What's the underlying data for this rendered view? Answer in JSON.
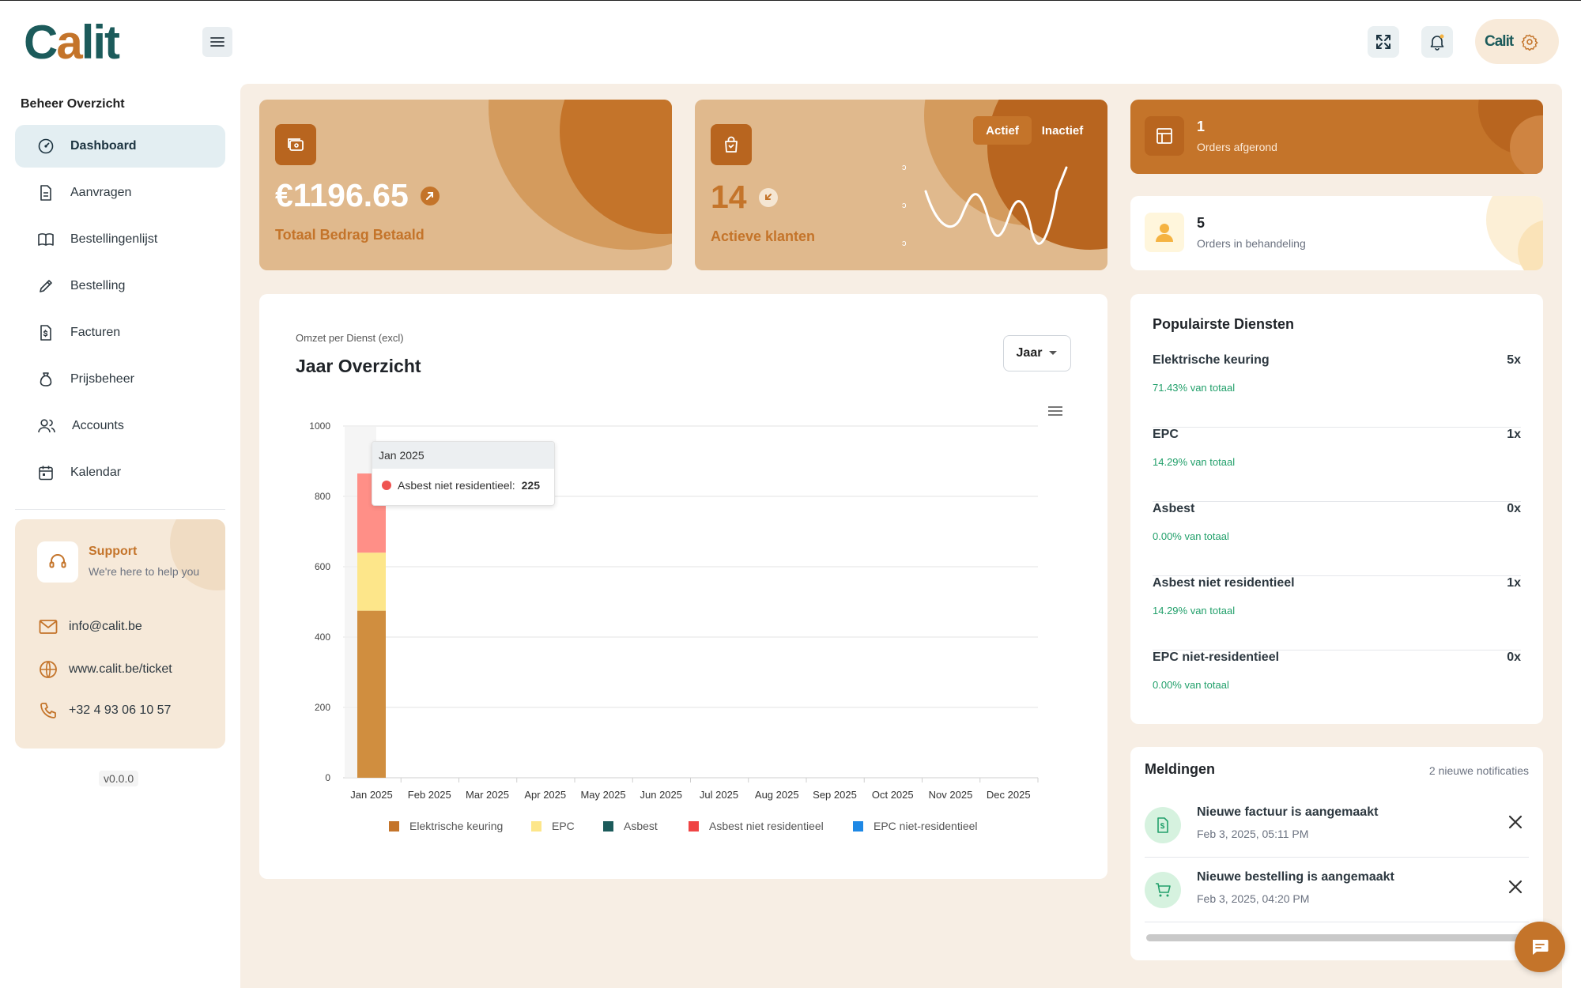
{
  "app": {
    "logo_text_1": "C",
    "logo_text_2": "a",
    "logo_text_3": "lit",
    "user_avatar_text": "Calit"
  },
  "sidebar": {
    "title": "Beheer Overzicht",
    "items": [
      {
        "label": "Dashboard",
        "icon": "gauge-icon",
        "active": true
      },
      {
        "label": "Aanvragen",
        "icon": "document-icon"
      },
      {
        "label": "Bestellingenlijst",
        "icon": "book-icon"
      },
      {
        "label": "Bestelling",
        "icon": "pencil-icon"
      },
      {
        "label": "Facturen",
        "icon": "invoice-icon"
      },
      {
        "label": "Prijsbeheer",
        "icon": "money-bag-icon"
      },
      {
        "label": "Accounts",
        "icon": "users-icon"
      },
      {
        "label": "Kalendar",
        "icon": "calendar-icon"
      }
    ],
    "support": {
      "title": "Support",
      "subtitle": "We're here to help you",
      "email": "info@calit.be",
      "website": "www.calit.be/ticket",
      "phone": "+32 4 93 06 10 57"
    },
    "version": "v0.0.0"
  },
  "cards": {
    "total": {
      "value": "€1196.65",
      "label": "Totaal Bedrag Betaald"
    },
    "clients": {
      "value": "14",
      "label": "Actieve klanten",
      "toggle_active": "Actief",
      "toggle_inactive": "Inactief",
      "sparkline_labels": [
        "ↄ",
        "ↄ",
        "ↄ"
      ]
    },
    "done": {
      "value": "1",
      "label": "Orders afgerond"
    },
    "pending": {
      "value": "5",
      "label": "Orders in behandeling"
    }
  },
  "chart_card": {
    "subtitle": "Omzet per Dienst (excl)",
    "title": "Jaar Overzicht",
    "period_select": "Jaar",
    "tooltip_title": "Jan 2025",
    "tooltip_series": "Asbest niet residentieel:",
    "tooltip_value": "225"
  },
  "chart_data": {
    "type": "bar",
    "stacked": true,
    "categories": [
      "Jan 2025",
      "Feb 2025",
      "Mar 2025",
      "Apr 2025",
      "May 2025",
      "Jun 2025",
      "Jul 2025",
      "Aug 2025",
      "Sep 2025",
      "Oct 2025",
      "Nov 2025",
      "Dec 2025"
    ],
    "ylim": [
      0,
      1000
    ],
    "yticks": [
      0,
      200,
      400,
      600,
      800,
      1000
    ],
    "grid": true,
    "legend_position": "bottom",
    "series": [
      {
        "name": "Elektrische keuring",
        "color": "#c4742a",
        "values": [
          475,
          0,
          0,
          0,
          0,
          0,
          0,
          0,
          0,
          0,
          0,
          0
        ]
      },
      {
        "name": "EPC",
        "color": "#fde68a",
        "values": [
          165,
          0,
          0,
          0,
          0,
          0,
          0,
          0,
          0,
          0,
          0,
          0
        ]
      },
      {
        "name": "Asbest",
        "color": "#1c5b5b",
        "values": [
          0,
          0,
          0,
          0,
          0,
          0,
          0,
          0,
          0,
          0,
          0,
          0
        ]
      },
      {
        "name": "Asbest niet residentieel",
        "color": "#ef4444",
        "values": [
          225,
          0,
          0,
          0,
          0,
          0,
          0,
          0,
          0,
          0,
          0,
          0
        ]
      },
      {
        "name": "EPC niet-residentieel",
        "color": "#1e88e5",
        "values": [
          0,
          0,
          0,
          0,
          0,
          0,
          0,
          0,
          0,
          0,
          0,
          0
        ]
      }
    ]
  },
  "popular": {
    "title": "Populairste Diensten",
    "items": [
      {
        "name": "Elektrische keuring",
        "count": "5x",
        "pct": "71.43% van totaal"
      },
      {
        "name": "EPC",
        "count": "1x",
        "pct": "14.29% van totaal"
      },
      {
        "name": "Asbest",
        "count": "0x",
        "pct": "0.00% van totaal"
      },
      {
        "name": "Asbest niet residentieel",
        "count": "1x",
        "pct": "14.29% van totaal"
      },
      {
        "name": "EPC niet-residentieel",
        "count": "0x",
        "pct": "0.00% van totaal"
      }
    ]
  },
  "notifications": {
    "title": "Meldingen",
    "count_label": "2 nieuwe notificaties",
    "items": [
      {
        "message": "Nieuwe factuur is aangemaakt",
        "time": "Feb 3, 2025, 05:11 PM",
        "icon": "invoice-icon"
      },
      {
        "message": "Nieuwe bestelling is aangemaakt",
        "time": "Feb 3, 2025, 04:20 PM",
        "icon": "cart-icon"
      }
    ]
  }
}
